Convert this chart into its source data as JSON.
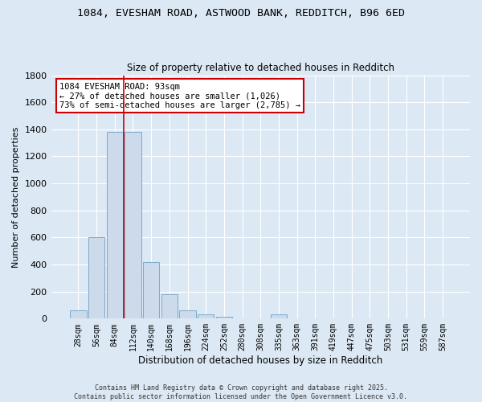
{
  "title_line1": "1084, EVESHAM ROAD, ASTWOOD BANK, REDDITCH, B96 6ED",
  "title_line2": "Size of property relative to detached houses in Redditch",
  "xlabel": "Distribution of detached houses by size in Redditch",
  "ylabel": "Number of detached properties",
  "bar_color": "#cddaeb",
  "bar_edge_color": "#7aaac8",
  "background_color": "#dce9f5",
  "grid_color": "#ffffff",
  "categories": [
    "28sqm",
    "56sqm",
    "84sqm",
    "112sqm",
    "140sqm",
    "168sqm",
    "196sqm",
    "224sqm",
    "252sqm",
    "280sqm",
    "308sqm",
    "335sqm",
    "363sqm",
    "391sqm",
    "419sqm",
    "447sqm",
    "475sqm",
    "503sqm",
    "531sqm",
    "559sqm",
    "587sqm"
  ],
  "values": [
    60,
    600,
    1380,
    1380,
    420,
    180,
    60,
    30,
    15,
    0,
    0,
    30,
    0,
    0,
    0,
    0,
    0,
    0,
    0,
    0,
    0
  ],
  "vline_x": 2.5,
  "vline_color": "#cc0000",
  "annotation_text": "1084 EVESHAM ROAD: 93sqm\n← 27% of detached houses are smaller (1,026)\n73% of semi-detached houses are larger (2,785) →",
  "annotation_box_color": "#ffffff",
  "annotation_box_edge": "#cc0000",
  "ylim": [
    0,
    1800
  ],
  "yticks": [
    0,
    200,
    400,
    600,
    800,
    1000,
    1200,
    1400,
    1600,
    1800
  ],
  "footer_line1": "Contains HM Land Registry data © Crown copyright and database right 2025.",
  "footer_line2": "Contains public sector information licensed under the Open Government Licence v3.0."
}
